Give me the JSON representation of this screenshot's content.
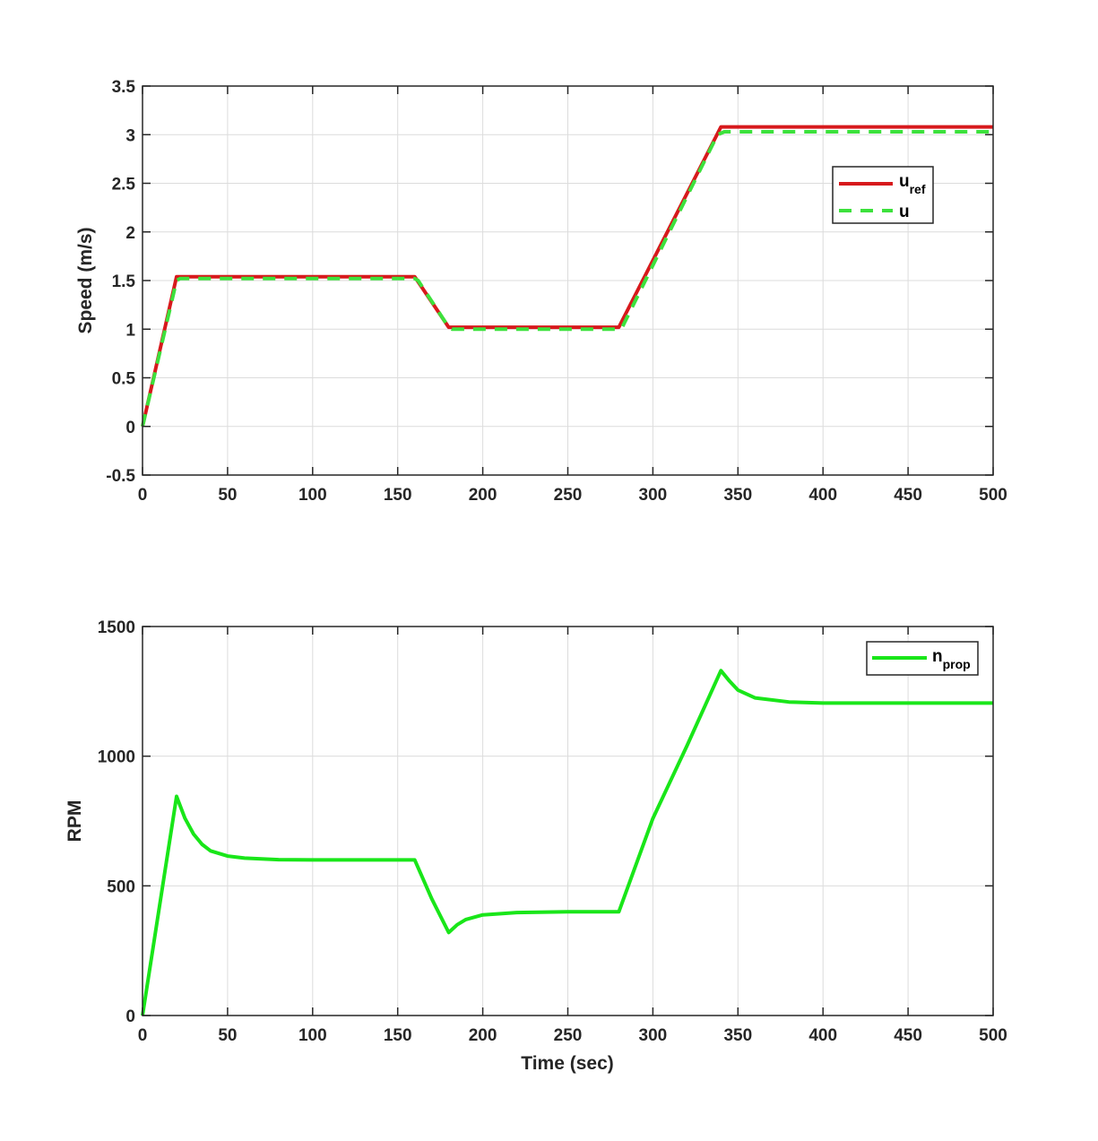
{
  "chart_data": [
    {
      "type": "line",
      "xlabel": "",
      "ylabel": "Speed (m/s)",
      "xlim": [
        0,
        500
      ],
      "ylim": [
        -0.5,
        3.5
      ],
      "xticks": [
        0,
        50,
        100,
        150,
        200,
        250,
        300,
        350,
        400,
        450,
        500
      ],
      "yticks": [
        -0.5,
        0,
        0.5,
        1,
        1.5,
        2,
        2.5,
        3,
        3.5
      ],
      "xtick_labels": [
        "0",
        "50",
        "100",
        "150",
        "200",
        "250",
        "300",
        "350",
        "400",
        "450",
        "500"
      ],
      "ytick_labels": [
        "-0.5",
        "0",
        "0.5",
        "1",
        "1.5",
        "2",
        "2.5",
        "3",
        "3.5"
      ],
      "grid": true,
      "legend_position": "upper-right",
      "series": [
        {
          "name": "u",
          "name_subscript": "ref",
          "color": "#d7191c",
          "style": "solid",
          "x": [
            0,
            20,
            160,
            180,
            280,
            340,
            500
          ],
          "y": [
            0,
            1.54,
            1.54,
            1.02,
            1.02,
            3.08,
            3.08
          ]
        },
        {
          "name": "u",
          "name_subscript": "",
          "color": "#3ce13c",
          "style": "dashed",
          "x": [
            0,
            20,
            22,
            160,
            162,
            180,
            182,
            280,
            282,
            338,
            342,
            500
          ],
          "y": [
            0,
            1.5,
            1.52,
            1.52,
            1.5,
            1.02,
            1.0,
            1.0,
            1.02,
            3.0,
            3.03,
            3.03
          ]
        }
      ]
    },
    {
      "type": "line",
      "xlabel": "Time (sec)",
      "ylabel": "RPM",
      "xlim": [
        0,
        500
      ],
      "ylim": [
        0,
        1500
      ],
      "xticks": [
        0,
        50,
        100,
        150,
        200,
        250,
        300,
        350,
        400,
        450,
        500
      ],
      "yticks": [
        0,
        500,
        1000,
        1500
      ],
      "xtick_labels": [
        "0",
        "50",
        "100",
        "150",
        "200",
        "250",
        "300",
        "350",
        "400",
        "450",
        "500"
      ],
      "ytick_labels": [
        "0",
        "500",
        "1000",
        "1500"
      ],
      "grid": true,
      "legend_position": "upper-right",
      "series": [
        {
          "name": "n",
          "name_subscript": "prop",
          "color": "#19e619",
          "style": "solid",
          "x": [
            0,
            20,
            25,
            30,
            35,
            40,
            50,
            60,
            80,
            100,
            160,
            170,
            180,
            185,
            190,
            200,
            220,
            250,
            280,
            300,
            320,
            340,
            345,
            350,
            360,
            380,
            400,
            500
          ],
          "y": [
            0,
            845,
            760,
            700,
            660,
            635,
            615,
            607,
            601,
            600,
            600,
            450,
            320,
            350,
            370,
            388,
            397,
            400,
            400,
            760,
            1040,
            1330,
            1290,
            1255,
            1225,
            1209,
            1205,
            1205
          ]
        }
      ]
    }
  ]
}
